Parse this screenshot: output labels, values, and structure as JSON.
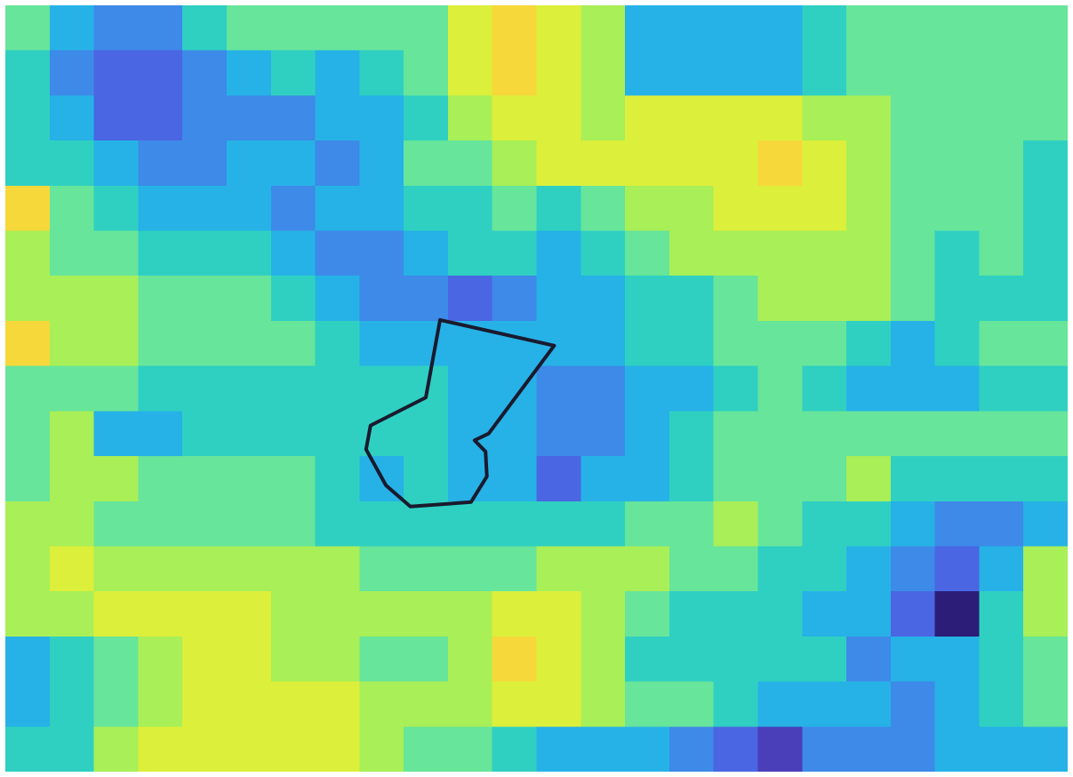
{
  "chart_data": {
    "type": "heatmap",
    "title": "",
    "xlabel": "",
    "ylabel": "",
    "colormap": "parula",
    "colorscale": {
      "0": "#3e1049",
      "1": "#2c1e78",
      "2": "#4a3fb8",
      "3": "#4a66e2",
      "4": "#3d8ae8",
      "5": "#26b2e6",
      "6": "#2fd0c2",
      "7": "#67e59a",
      "8": "#a9ef57",
      "9": "#dcef3a",
      "10": "#f6d83a"
    },
    "grid_cols": 24,
    "grid_rows": 17,
    "rows": [
      [
        7,
        5,
        4,
        4,
        6,
        7,
        7,
        7,
        7,
        7,
        9,
        10,
        9,
        8,
        5,
        5,
        5,
        5,
        6,
        7,
        7,
        7,
        7,
        7
      ],
      [
        6,
        4,
        3,
        3,
        4,
        5,
        6,
        5,
        6,
        7,
        9,
        10,
        9,
        8,
        5,
        5,
        5,
        5,
        6,
        7,
        7,
        7,
        7,
        7
      ],
      [
        6,
        5,
        3,
        3,
        4,
        4,
        4,
        5,
        5,
        6,
        8,
        9,
        9,
        8,
        9,
        9,
        9,
        9,
        8,
        8,
        7,
        7,
        7,
        7
      ],
      [
        6,
        6,
        5,
        4,
        4,
        5,
        5,
        4,
        5,
        7,
        7,
        8,
        9,
        9,
        9,
        9,
        9,
        10,
        9,
        8,
        7,
        7,
        7,
        6
      ],
      [
        10,
        7,
        6,
        5,
        5,
        5,
        4,
        5,
        5,
        6,
        6,
        7,
        6,
        7,
        8,
        8,
        9,
        9,
        9,
        8,
        7,
        7,
        7,
        6
      ],
      [
        8,
        7,
        7,
        6,
        6,
        6,
        5,
        4,
        4,
        5,
        6,
        6,
        5,
        6,
        7,
        8,
        8,
        8,
        8,
        8,
        7,
        6,
        7,
        6
      ],
      [
        8,
        8,
        8,
        7,
        7,
        7,
        6,
        5,
        4,
        4,
        3,
        4,
        5,
        5,
        6,
        6,
        7,
        8,
        8,
        8,
        7,
        6,
        6,
        6
      ],
      [
        10,
        8,
        8,
        7,
        7,
        7,
        7,
        6,
        5,
        5,
        5,
        5,
        5,
        5,
        6,
        6,
        7,
        7,
        7,
        6,
        5,
        6,
        7,
        7
      ],
      [
        7,
        7,
        7,
        6,
        6,
        6,
        6,
        6,
        6,
        6,
        5,
        5,
        4,
        4,
        5,
        5,
        6,
        7,
        6,
        5,
        5,
        5,
        6,
        6
      ],
      [
        7,
        8,
        5,
        5,
        6,
        6,
        6,
        6,
        6,
        6,
        5,
        5,
        4,
        4,
        5,
        6,
        7,
        7,
        7,
        7,
        7,
        7,
        7,
        7
      ],
      [
        7,
        8,
        8,
        7,
        7,
        7,
        7,
        6,
        5,
        6,
        5,
        5,
        3,
        5,
        5,
        6,
        7,
        7,
        7,
        8,
        6,
        6,
        6,
        6
      ],
      [
        8,
        8,
        7,
        7,
        7,
        7,
        7,
        6,
        6,
        6,
        6,
        6,
        6,
        6,
        7,
        7,
        8,
        7,
        6,
        6,
        5,
        4,
        4,
        5
      ],
      [
        8,
        9,
        8,
        8,
        8,
        8,
        8,
        8,
        7,
        7,
        7,
        7,
        8,
        8,
        8,
        7,
        7,
        6,
        6,
        5,
        4,
        3,
        5,
        8
      ],
      [
        8,
        8,
        9,
        9,
        9,
        9,
        8,
        8,
        8,
        8,
        8,
        9,
        9,
        8,
        7,
        6,
        6,
        6,
        5,
        5,
        3,
        1,
        6,
        8
      ],
      [
        5,
        6,
        7,
        8,
        9,
        9,
        8,
        8,
        7,
        7,
        8,
        10,
        9,
        8,
        6,
        6,
        6,
        6,
        6,
        4,
        5,
        5,
        6,
        7
      ],
      [
        5,
        6,
        7,
        8,
        9,
        9,
        9,
        9,
        8,
        8,
        8,
        9,
        9,
        8,
        7,
        7,
        6,
        5,
        5,
        5,
        4,
        5,
        6,
        7
      ],
      [
        6,
        6,
        8,
        9,
        9,
        9,
        9,
        9,
        8,
        7,
        7,
        6,
        5,
        5,
        5,
        4,
        3,
        2,
        4,
        4,
        4,
        5,
        5,
        5
      ]
    ],
    "overlay": {
      "shape": "polygon",
      "color": "#1a1a2e",
      "points": [
        [
          9.82,
          6.98
        ],
        [
          12.4,
          7.55
        ],
        [
          10.92,
          9.5
        ],
        [
          10.6,
          9.65
        ],
        [
          10.85,
          9.9
        ],
        [
          10.88,
          10.45
        ],
        [
          10.52,
          11.02
        ],
        [
          9.15,
          11.12
        ],
        [
          8.6,
          10.65
        ],
        [
          8.15,
          9.85
        ],
        [
          8.25,
          9.32
        ],
        [
          9.5,
          8.7
        ]
      ]
    }
  }
}
